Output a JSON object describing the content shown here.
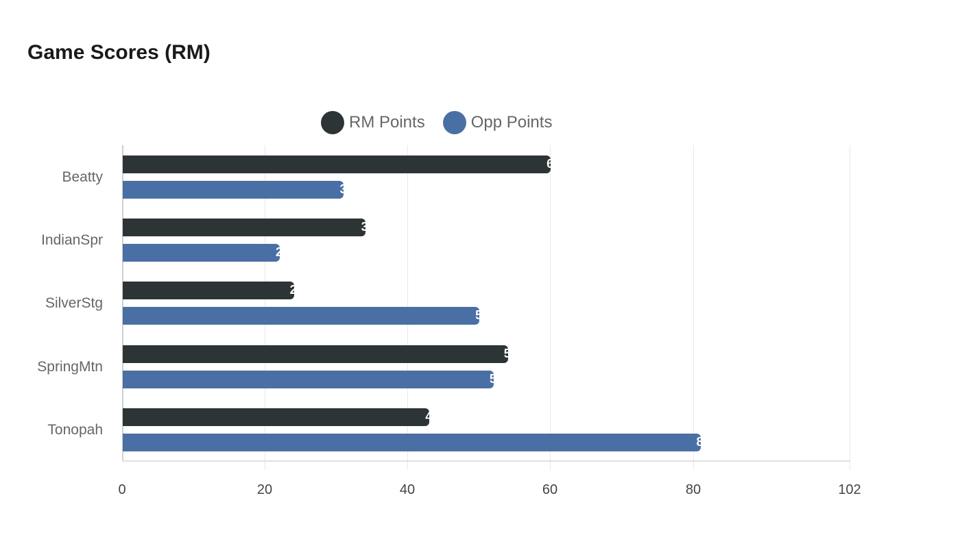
{
  "title": "Game Scores (RM)",
  "legend": [
    {
      "label": "RM Points",
      "color": "#2d3436"
    },
    {
      "label": "Opp Points",
      "color": "#4a6fa5"
    }
  ],
  "chart_data": {
    "type": "bar",
    "orientation": "horizontal",
    "title": "Game Scores (RM)",
    "categories": [
      "Beatty",
      "IndianSpr",
      "SilverStg",
      "SpringMtn",
      "Tonopah"
    ],
    "series": [
      {
        "name": "RM Points",
        "color": "#2d3436",
        "values": [
          60,
          34,
          24,
          54,
          43
        ]
      },
      {
        "name": "Opp Points",
        "color": "#4a6fa5",
        "values": [
          31,
          22,
          50,
          52,
          81
        ]
      }
    ],
    "xlabel": "",
    "ylabel": "",
    "xlim": [
      0,
      102
    ],
    "xticks": [
      "0",
      "20",
      "40",
      "60",
      "80",
      "102"
    ],
    "grid": true,
    "legend_position": "top"
  }
}
